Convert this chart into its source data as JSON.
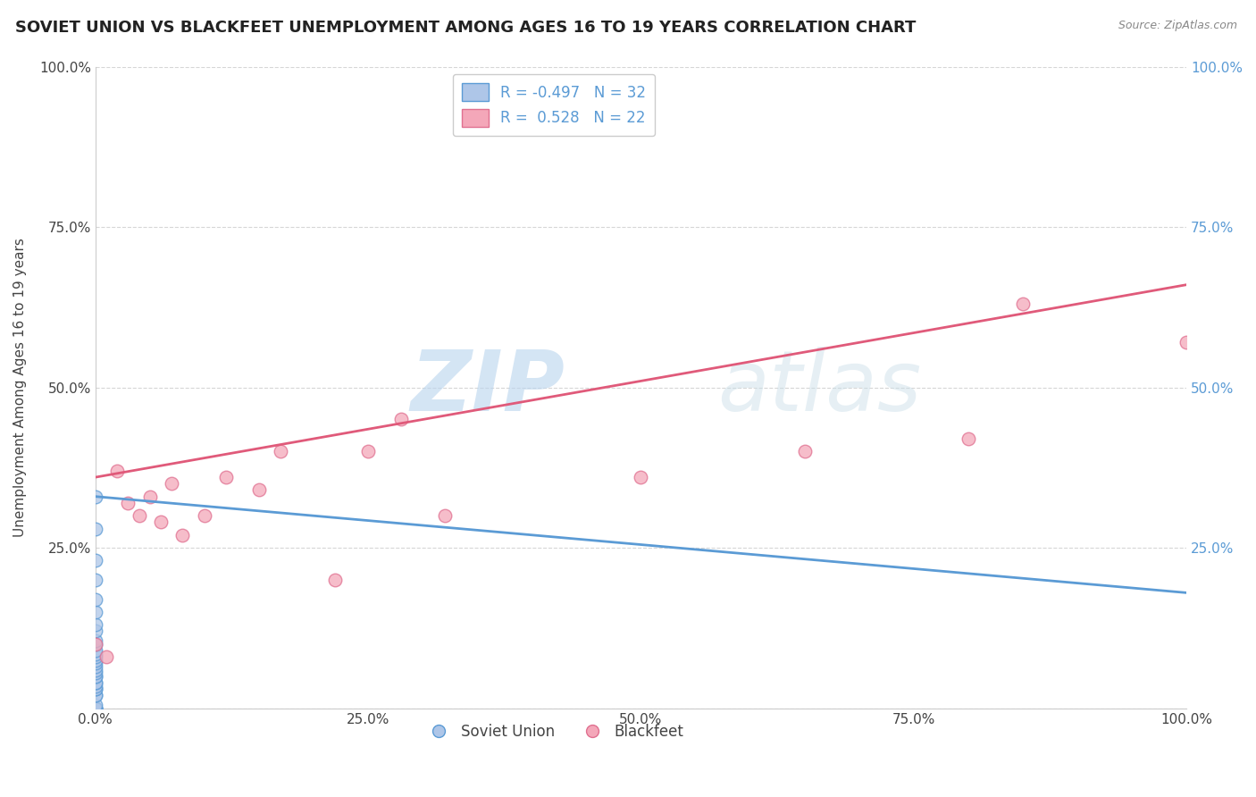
{
  "title": "SOVIET UNION VS BLACKFEET UNEMPLOYMENT AMONG AGES 16 TO 19 YEARS CORRELATION CHART",
  "source": "Source: ZipAtlas.com",
  "ylabel": "Unemployment Among Ages 16 to 19 years",
  "watermark_zip": "ZIP",
  "watermark_atlas": "atlas",
  "legend_soviet": "Soviet Union",
  "legend_blackfeet": "Blackfeet",
  "r_soviet": -0.497,
  "n_soviet": 32,
  "r_blackfeet": 0.528,
  "n_blackfeet": 22,
  "soviet_color": "#aec6e8",
  "blackfeet_color": "#f4a7b9",
  "soviet_edge_color": "#5b9bd5",
  "blackfeet_edge_color": "#e07090",
  "soviet_line_color": "#5b9bd5",
  "blackfeet_line_color": "#e05a7a",
  "soviet_x": [
    0.0,
    0.0,
    0.0,
    0.0,
    0.0,
    0.0,
    0.0,
    0.0,
    0.0,
    0.0,
    0.0,
    0.0,
    0.0,
    0.0,
    0.0,
    0.0,
    0.0,
    0.0,
    0.0,
    0.0,
    0.0,
    0.0,
    0.0,
    0.0,
    0.0,
    0.0,
    0.0,
    0.0,
    0.0,
    0.0,
    0.0,
    0.0
  ],
  "soviet_y": [
    0.0,
    0.0,
    0.0,
    0.0,
    0.005,
    0.02,
    0.02,
    0.03,
    0.03,
    0.035,
    0.04,
    0.04,
    0.05,
    0.05,
    0.055,
    0.06,
    0.065,
    0.07,
    0.075,
    0.08,
    0.085,
    0.09,
    0.1,
    0.105,
    0.12,
    0.13,
    0.15,
    0.17,
    0.2,
    0.23,
    0.28,
    0.33
  ],
  "blackfeet_x": [
    0.0,
    0.01,
    0.02,
    0.03,
    0.04,
    0.05,
    0.06,
    0.07,
    0.08,
    0.1,
    0.12,
    0.15,
    0.17,
    0.22,
    0.25,
    0.28,
    0.32,
    0.5,
    0.65,
    0.8,
    0.85,
    1.0
  ],
  "blackfeet_y": [
    0.1,
    0.08,
    0.37,
    0.32,
    0.3,
    0.33,
    0.29,
    0.35,
    0.27,
    0.3,
    0.36,
    0.34,
    0.4,
    0.2,
    0.4,
    0.45,
    0.3,
    0.36,
    0.4,
    0.42,
    0.63,
    0.57
  ],
  "xlim": [
    0.0,
    1.0
  ],
  "ylim": [
    0.0,
    1.0
  ],
  "xticks": [
    0.0,
    0.25,
    0.5,
    0.75,
    1.0
  ],
  "xtick_labels": [
    "0.0%",
    "25.0%",
    "50.0%",
    "75.0%",
    "100.0%"
  ],
  "yticks": [
    0.0,
    0.25,
    0.5,
    0.75,
    1.0
  ],
  "ytick_labels_left": [
    "",
    "25.0%",
    "50.0%",
    "75.0%",
    "100.0%"
  ],
  "ytick_labels_right": [
    "",
    "25.0%",
    "50.0%",
    "75.0%",
    "100.0%"
  ],
  "soviet_line_x": [
    0.0,
    1.0
  ],
  "soviet_line_y": [
    0.33,
    0.18
  ],
  "blackfeet_line_x": [
    0.0,
    1.0
  ],
  "blackfeet_line_y": [
    0.36,
    0.66
  ],
  "marker_size": 110,
  "title_fontsize": 13,
  "axis_label_fontsize": 11,
  "tick_fontsize": 11,
  "background_color": "#ffffff",
  "grid_color": "#cccccc",
  "tick_color_blue": "#5b9bd5",
  "tick_color_dark": "#444444"
}
